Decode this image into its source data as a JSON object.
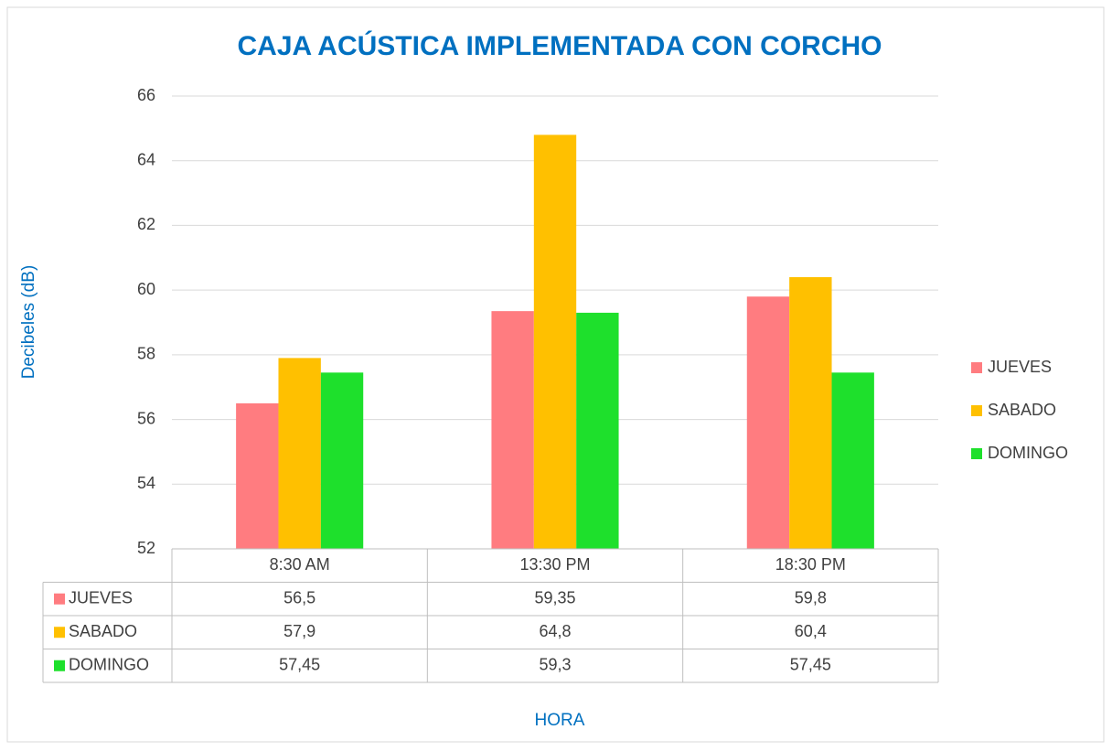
{
  "chart_data": {
    "type": "bar",
    "title": "CAJA ACÚSTICA IMPLEMENTADA CON CORCHO",
    "y_label": "Decibeles (dB)",
    "x_label": "HORA",
    "categories": [
      "8:30 AM",
      "13:30 PM",
      "18:30 PM"
    ],
    "series": [
      {
        "name": "JUEVES",
        "color": "#ff7c80",
        "values": [
          56.5,
          59.35,
          59.8
        ],
        "value_labels": [
          "56,5",
          "59,35",
          "59,8"
        ]
      },
      {
        "name": "SABADO",
        "color": "#ffc000",
        "values": [
          57.9,
          64.8,
          60.4
        ],
        "value_labels": [
          "57,9",
          "64,8",
          "60,4"
        ]
      },
      {
        "name": "DOMINGO",
        "color": "#1ee02c",
        "values": [
          57.45,
          59.3,
          57.45
        ],
        "value_labels": [
          "57,45",
          "59,3",
          "57,45"
        ]
      }
    ],
    "ylim": [
      52,
      66
    ],
    "yticks": [
      52,
      54,
      56,
      58,
      60,
      62,
      64,
      66
    ],
    "grid": true,
    "legend": "right"
  }
}
